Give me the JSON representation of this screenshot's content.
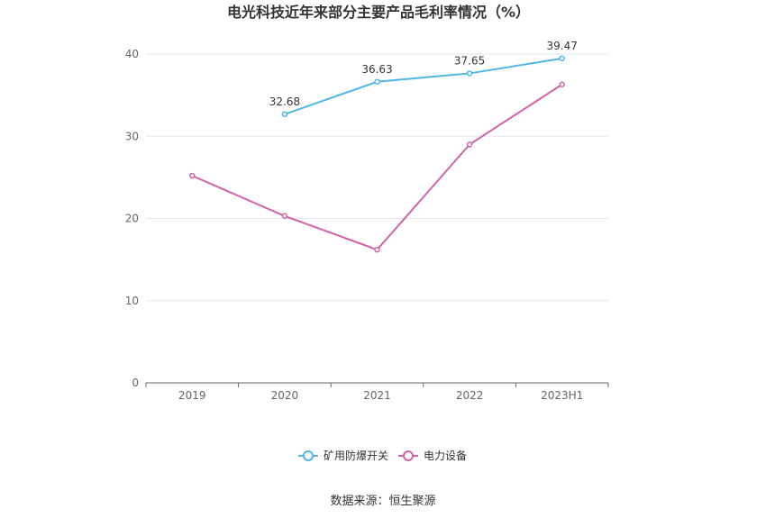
{
  "chart_data": {
    "type": "line",
    "title": "电光科技近年来部分主要产品毛利率情况（%）",
    "categories": [
      "2019",
      "2020",
      "2021",
      "2022",
      "2023H1"
    ],
    "ylim": [
      0,
      40
    ],
    "yticks": [
      0,
      10,
      20,
      30,
      40
    ],
    "grid": true,
    "legend_position": "bottom",
    "series": [
      {
        "name": "矿用防爆开关",
        "values": [
          null,
          32.68,
          36.63,
          37.65,
          39.47
        ],
        "labels": [
          null,
          "32.68",
          "36.63",
          "37.65",
          "39.47"
        ],
        "color": "#4fb7e8"
      },
      {
        "name": "电力设备",
        "values": [
          25.2,
          20.3,
          16.2,
          29.0,
          36.3
        ],
        "labels": [
          null,
          null,
          null,
          null,
          null
        ],
        "color": "#d462a6"
      }
    ]
  },
  "source": "数据来源：恒生聚源"
}
